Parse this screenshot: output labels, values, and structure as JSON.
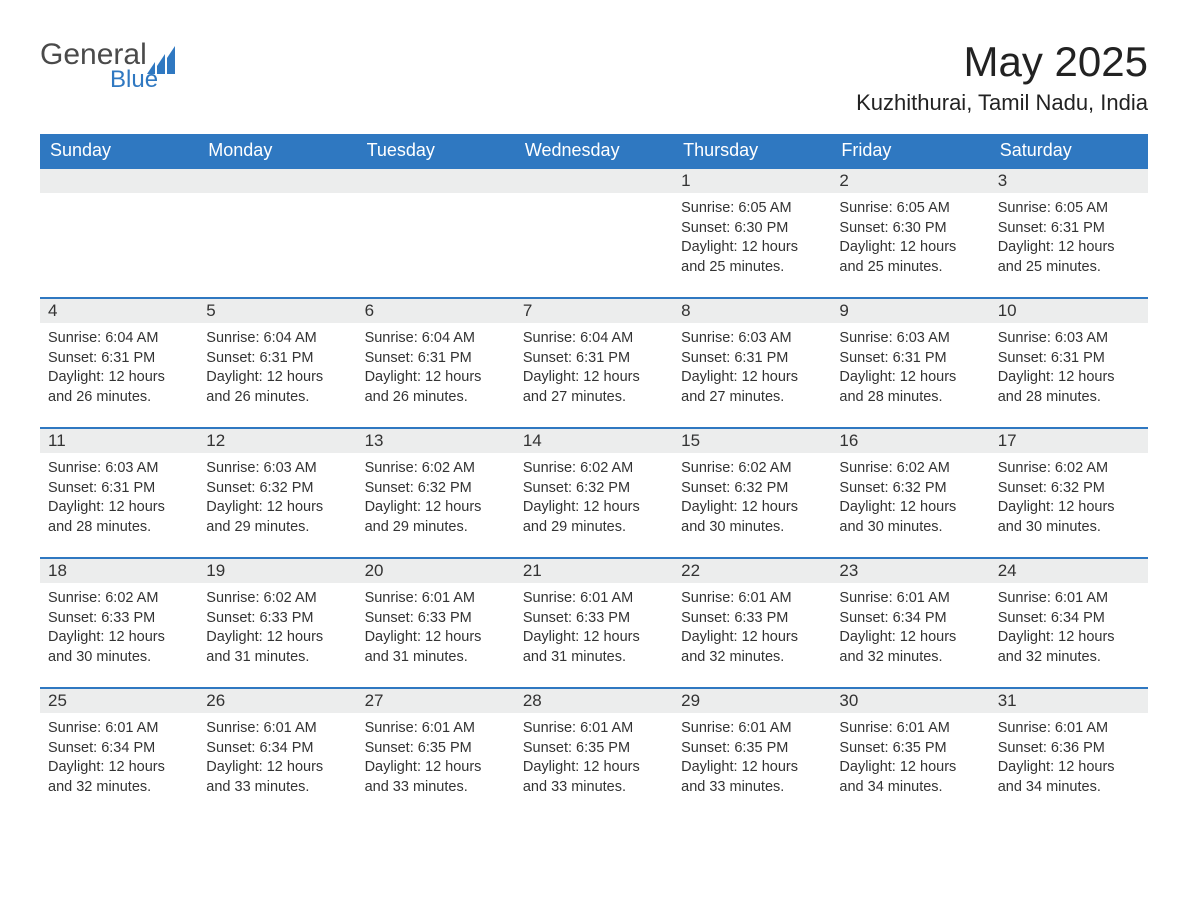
{
  "logo": {
    "text_general": "General",
    "text_blue": "Blue",
    "icon_color": "#2f78c1"
  },
  "header": {
    "month_title": "May 2025",
    "location": "Kuzhithurai, Tamil Nadu, India"
  },
  "colors": {
    "header_bg": "#2f78c1",
    "header_text": "#ffffff",
    "daynum_bg": "#eceded",
    "border": "#2f78c1",
    "text": "#333333",
    "page_bg": "#ffffff"
  },
  "fonts": {
    "title_size_pt": 32,
    "location_size_pt": 17,
    "dayhead_size_pt": 14,
    "body_size_pt": 11
  },
  "day_headers": [
    "Sunday",
    "Monday",
    "Tuesday",
    "Wednesday",
    "Thursday",
    "Friday",
    "Saturday"
  ],
  "weeks": [
    [
      {
        "empty": true
      },
      {
        "empty": true
      },
      {
        "empty": true
      },
      {
        "empty": true
      },
      {
        "num": "1",
        "sunrise": "Sunrise: 6:05 AM",
        "sunset": "Sunset: 6:30 PM",
        "daylight": "Daylight: 12 hours and 25 minutes."
      },
      {
        "num": "2",
        "sunrise": "Sunrise: 6:05 AM",
        "sunset": "Sunset: 6:30 PM",
        "daylight": "Daylight: 12 hours and 25 minutes."
      },
      {
        "num": "3",
        "sunrise": "Sunrise: 6:05 AM",
        "sunset": "Sunset: 6:31 PM",
        "daylight": "Daylight: 12 hours and 25 minutes."
      }
    ],
    [
      {
        "num": "4",
        "sunrise": "Sunrise: 6:04 AM",
        "sunset": "Sunset: 6:31 PM",
        "daylight": "Daylight: 12 hours and 26 minutes."
      },
      {
        "num": "5",
        "sunrise": "Sunrise: 6:04 AM",
        "sunset": "Sunset: 6:31 PM",
        "daylight": "Daylight: 12 hours and 26 minutes."
      },
      {
        "num": "6",
        "sunrise": "Sunrise: 6:04 AM",
        "sunset": "Sunset: 6:31 PM",
        "daylight": "Daylight: 12 hours and 26 minutes."
      },
      {
        "num": "7",
        "sunrise": "Sunrise: 6:04 AM",
        "sunset": "Sunset: 6:31 PM",
        "daylight": "Daylight: 12 hours and 27 minutes."
      },
      {
        "num": "8",
        "sunrise": "Sunrise: 6:03 AM",
        "sunset": "Sunset: 6:31 PM",
        "daylight": "Daylight: 12 hours and 27 minutes."
      },
      {
        "num": "9",
        "sunrise": "Sunrise: 6:03 AM",
        "sunset": "Sunset: 6:31 PM",
        "daylight": "Daylight: 12 hours and 28 minutes."
      },
      {
        "num": "10",
        "sunrise": "Sunrise: 6:03 AM",
        "sunset": "Sunset: 6:31 PM",
        "daylight": "Daylight: 12 hours and 28 minutes."
      }
    ],
    [
      {
        "num": "11",
        "sunrise": "Sunrise: 6:03 AM",
        "sunset": "Sunset: 6:31 PM",
        "daylight": "Daylight: 12 hours and 28 minutes."
      },
      {
        "num": "12",
        "sunrise": "Sunrise: 6:03 AM",
        "sunset": "Sunset: 6:32 PM",
        "daylight": "Daylight: 12 hours and 29 minutes."
      },
      {
        "num": "13",
        "sunrise": "Sunrise: 6:02 AM",
        "sunset": "Sunset: 6:32 PM",
        "daylight": "Daylight: 12 hours and 29 minutes."
      },
      {
        "num": "14",
        "sunrise": "Sunrise: 6:02 AM",
        "sunset": "Sunset: 6:32 PM",
        "daylight": "Daylight: 12 hours and 29 minutes."
      },
      {
        "num": "15",
        "sunrise": "Sunrise: 6:02 AM",
        "sunset": "Sunset: 6:32 PM",
        "daylight": "Daylight: 12 hours and 30 minutes."
      },
      {
        "num": "16",
        "sunrise": "Sunrise: 6:02 AM",
        "sunset": "Sunset: 6:32 PM",
        "daylight": "Daylight: 12 hours and 30 minutes."
      },
      {
        "num": "17",
        "sunrise": "Sunrise: 6:02 AM",
        "sunset": "Sunset: 6:32 PM",
        "daylight": "Daylight: 12 hours and 30 minutes."
      }
    ],
    [
      {
        "num": "18",
        "sunrise": "Sunrise: 6:02 AM",
        "sunset": "Sunset: 6:33 PM",
        "daylight": "Daylight: 12 hours and 30 minutes."
      },
      {
        "num": "19",
        "sunrise": "Sunrise: 6:02 AM",
        "sunset": "Sunset: 6:33 PM",
        "daylight": "Daylight: 12 hours and 31 minutes."
      },
      {
        "num": "20",
        "sunrise": "Sunrise: 6:01 AM",
        "sunset": "Sunset: 6:33 PM",
        "daylight": "Daylight: 12 hours and 31 minutes."
      },
      {
        "num": "21",
        "sunrise": "Sunrise: 6:01 AM",
        "sunset": "Sunset: 6:33 PM",
        "daylight": "Daylight: 12 hours and 31 minutes."
      },
      {
        "num": "22",
        "sunrise": "Sunrise: 6:01 AM",
        "sunset": "Sunset: 6:33 PM",
        "daylight": "Daylight: 12 hours and 32 minutes."
      },
      {
        "num": "23",
        "sunrise": "Sunrise: 6:01 AM",
        "sunset": "Sunset: 6:34 PM",
        "daylight": "Daylight: 12 hours and 32 minutes."
      },
      {
        "num": "24",
        "sunrise": "Sunrise: 6:01 AM",
        "sunset": "Sunset: 6:34 PM",
        "daylight": "Daylight: 12 hours and 32 minutes."
      }
    ],
    [
      {
        "num": "25",
        "sunrise": "Sunrise: 6:01 AM",
        "sunset": "Sunset: 6:34 PM",
        "daylight": "Daylight: 12 hours and 32 minutes."
      },
      {
        "num": "26",
        "sunrise": "Sunrise: 6:01 AM",
        "sunset": "Sunset: 6:34 PM",
        "daylight": "Daylight: 12 hours and 33 minutes."
      },
      {
        "num": "27",
        "sunrise": "Sunrise: 6:01 AM",
        "sunset": "Sunset: 6:35 PM",
        "daylight": "Daylight: 12 hours and 33 minutes."
      },
      {
        "num": "28",
        "sunrise": "Sunrise: 6:01 AM",
        "sunset": "Sunset: 6:35 PM",
        "daylight": "Daylight: 12 hours and 33 minutes."
      },
      {
        "num": "29",
        "sunrise": "Sunrise: 6:01 AM",
        "sunset": "Sunset: 6:35 PM",
        "daylight": "Daylight: 12 hours and 33 minutes."
      },
      {
        "num": "30",
        "sunrise": "Sunrise: 6:01 AM",
        "sunset": "Sunset: 6:35 PM",
        "daylight": "Daylight: 12 hours and 34 minutes."
      },
      {
        "num": "31",
        "sunrise": "Sunrise: 6:01 AM",
        "sunset": "Sunset: 6:36 PM",
        "daylight": "Daylight: 12 hours and 34 minutes."
      }
    ]
  ]
}
